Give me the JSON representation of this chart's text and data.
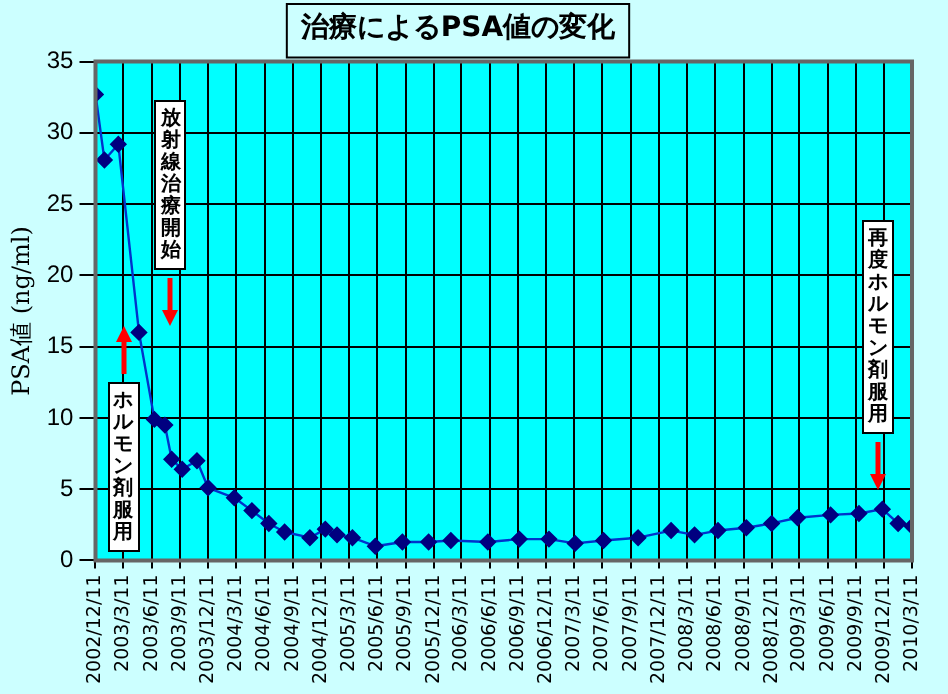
{
  "chart_data": {
    "type": "line",
    "title": "治療によるPSA値の変化",
    "ylabel": "PSA値 (ng/ml)",
    "x": [
      "2002-12-11",
      "2003-01-09",
      "2003-02-23",
      "2003-05-01",
      "2003-06-20",
      "2003-07-24",
      "2003-08-15",
      "2003-09-18",
      "2003-11-05",
      "2003-12-11",
      "2004-03-05",
      "2004-05-01",
      "2004-06-25",
      "2004-08-15",
      "2004-11-05",
      "2004-12-25",
      "2005-02-01",
      "2005-03-23",
      "2005-06-05",
      "2005-09-01",
      "2005-11-25",
      "2006-02-05",
      "2006-06-05",
      "2006-09-15",
      "2006-12-20",
      "2007-03-15",
      "2007-06-15",
      "2007-10-05",
      "2008-01-20",
      "2008-04-05",
      "2008-06-20",
      "2008-09-20",
      "2008-12-11",
      "2009-03-05",
      "2009-06-20",
      "2009-09-20",
      "2009-12-05",
      "2010-01-25",
      "2010-03-11"
    ],
    "series": [
      {
        "color": "#000080",
        "values": [
          32.7,
          28.1,
          29.2,
          16.0,
          9.9,
          9.5,
          7.1,
          6.4,
          7.0,
          5.1,
          4.4,
          3.5,
          2.6,
          2.0,
          1.6,
          2.2,
          1.8,
          1.6,
          1.0,
          1.3,
          1.3,
          1.4,
          1.3,
          1.5,
          1.5,
          1.2,
          1.4,
          1.6,
          2.1,
          1.8,
          2.1,
          2.3,
          2.6,
          3.0,
          3.2,
          3.3,
          3.6,
          2.6,
          2.4
        ]
      }
    ],
    "xlim": [
      "2002-12-11",
      "2010-03-11"
    ],
    "xticks": [
      {
        "value": "2002-12-11",
        "label": "2002/12/11"
      },
      {
        "value": "2003-03-11",
        "label": "2003/3/11"
      },
      {
        "value": "2003-06-11",
        "label": "2003/6/11"
      },
      {
        "value": "2003-09-11",
        "label": "2003/9/11"
      },
      {
        "value": "2003-12-11",
        "label": "2003/12/11"
      },
      {
        "value": "2004-03-11",
        "label": "2004/3/11"
      },
      {
        "value": "2004-06-11",
        "label": "2004/6/11"
      },
      {
        "value": "2004-09-11",
        "label": "2004/9/11"
      },
      {
        "value": "2004-12-11",
        "label": "2004/12/11"
      },
      {
        "value": "2005-03-11",
        "label": "2005/3/11"
      },
      {
        "value": "2005-06-11",
        "label": "2005/6/11"
      },
      {
        "value": "2005-09-11",
        "label": "2005/9/11"
      },
      {
        "value": "2005-12-11",
        "label": "2005/12/11"
      },
      {
        "value": "2006-03-11",
        "label": "2006/3/11"
      },
      {
        "value": "2006-06-11",
        "label": "2006/6/11"
      },
      {
        "value": "2006-09-11",
        "label": "2006/9/11"
      },
      {
        "value": "2006-12-11",
        "label": "2006/12/11"
      },
      {
        "value": "2007-03-11",
        "label": "2007/3/11"
      },
      {
        "value": "2007-06-11",
        "label": "2007/6/11"
      },
      {
        "value": "2007-09-11",
        "label": "2007/9/11"
      },
      {
        "value": "2007-12-11",
        "label": "2007/12/11"
      },
      {
        "value": "2008-03-11",
        "label": "2008/3/11"
      },
      {
        "value": "2008-06-11",
        "label": "2008/6/11"
      },
      {
        "value": "2008-09-11",
        "label": "2008/9/11"
      },
      {
        "value": "2008-12-11",
        "label": "2008/12/11"
      },
      {
        "value": "2009-03-11",
        "label": "2009/3/11"
      },
      {
        "value": "2009-06-11",
        "label": "2009/6/11"
      },
      {
        "value": "2009-09-11",
        "label": "2009/9/11"
      },
      {
        "value": "2009-12-11",
        "label": "2009/12/11"
      },
      {
        "value": "2010-03-11",
        "label": "2010/3/11"
      }
    ],
    "ylim": [
      0,
      35
    ],
    "yticks": [
      0,
      5,
      10,
      15,
      20,
      25,
      30,
      35
    ],
    "grid": true,
    "marker": "diamond",
    "line_style": "solid",
    "annotations": [
      "ホルモン剤服用",
      "放射線治療開始",
      "再度ホルモン剤服用"
    ]
  }
}
